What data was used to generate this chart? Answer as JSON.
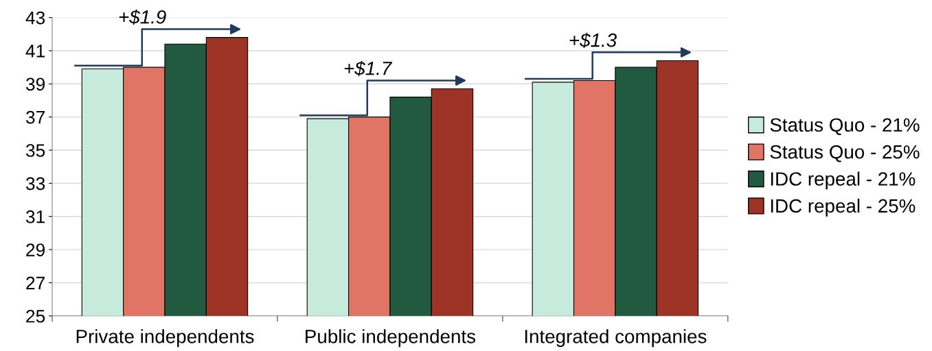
{
  "chart_data": {
    "type": "bar",
    "categories": [
      "Private independents",
      "Public independents",
      "Integrated companies"
    ],
    "series": [
      {
        "name": "Status Quo - 21%",
        "color": "#c6eadb",
        "values": [
          39.9,
          36.9,
          39.1
        ]
      },
      {
        "name": "Status Quo - 25%",
        "color": "#e07565",
        "values": [
          40.0,
          37.0,
          39.2
        ]
      },
      {
        "name": "IDC repeal - 21%",
        "color": "#215a41",
        "values": [
          41.4,
          38.2,
          40.0
        ]
      },
      {
        "name": "IDC repeal - 25%",
        "color": "#9c3324",
        "values": [
          41.8,
          38.7,
          40.4
        ]
      }
    ],
    "ylim": [
      25,
      43
    ],
    "yticks": [
      25,
      27,
      29,
      31,
      33,
      35,
      37,
      39,
      41,
      43
    ],
    "grid": "y",
    "legend": "right",
    "annotations": [
      "+$1.9",
      "+$1.7",
      "+$1.3"
    ]
  }
}
